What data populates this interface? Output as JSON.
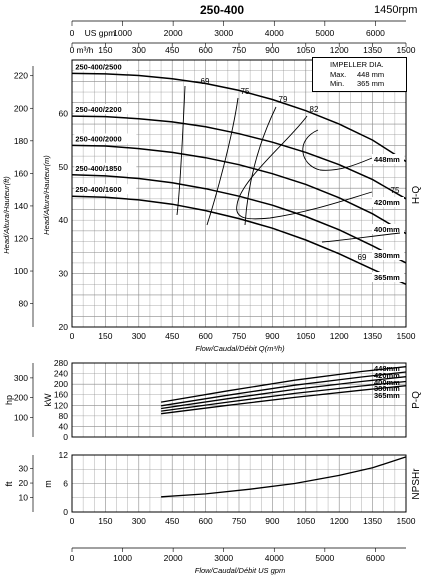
{
  "header": {
    "model": "250-400",
    "speed": "1450rpm"
  },
  "axes": {
    "us_gpm_label": "US gpm",
    "m3h_label": "m³/h",
    "flow_label_main": "Flow/Caudal/Débit Q(m³/h)",
    "flow_label_bottom": "Flow/Caudal/Débit  US gpm",
    "head_m_label": "Head/Altura/Hauteur(m)",
    "head_ft_label": "Head/Altura/Hauteur(ft)",
    "hq_label": "H-Q",
    "pq_label": "P-Q",
    "npsh_label": "NPSHr",
    "kw_label": "kW",
    "hp_label": "hp",
    "m_label": "m",
    "ft_label": "ft"
  },
  "impeller_box": {
    "title": "IMPELLER DIA.",
    "max_label": "Max.",
    "max_value": "448 mm",
    "min_label": "Min.",
    "min_value": "365 mm"
  },
  "chart_data": [
    {
      "type": "line",
      "title": "H-Q",
      "x_unit": "m³/h",
      "xlim": [
        0,
        1500
      ],
      "x_ticks": [
        0,
        150,
        300,
        450,
        600,
        750,
        900,
        1050,
        1200,
        1350,
        1500
      ],
      "ylim_m": [
        20,
        70
      ],
      "y_ticks_m": [
        20,
        30,
        40,
        50,
        60
      ],
      "y_ticks_ft": [
        80,
        100,
        120,
        140,
        160,
        180,
        200,
        220
      ],
      "us_gpm_ticks": [
        0,
        1000,
        2000,
        3000,
        4000,
        5000,
        6000
      ],
      "series": [
        {
          "name": "448mm",
          "label": "250-400/2500",
          "x": [
            0,
            150,
            300,
            450,
            600,
            750,
            900,
            1050,
            1200,
            1350,
            1500
          ],
          "y": [
            67.5,
            67.4,
            67.1,
            66.5,
            65.6,
            64.3,
            62.6,
            60.5,
            58.0,
            55.0,
            51.0
          ]
        },
        {
          "name": "420mm",
          "label": "250-400/2200",
          "x": [
            0,
            150,
            300,
            450,
            600,
            750,
            900,
            1050,
            1200,
            1350,
            1500
          ],
          "y": [
            59.5,
            59.4,
            59.0,
            58.4,
            57.5,
            56.2,
            54.6,
            52.7,
            50.4,
            47.6,
            44.0
          ]
        },
        {
          "name": "400mm",
          "label": "250-400/2000",
          "x": [
            0,
            150,
            300,
            450,
            600,
            750,
            900,
            1050,
            1200,
            1350,
            1500
          ],
          "y": [
            54.0,
            53.9,
            53.4,
            52.7,
            51.7,
            50.4,
            48.7,
            46.7,
            44.2,
            41.2,
            37.5
          ]
        },
        {
          "name": "380mm",
          "label": "250-400/1850",
          "x": [
            0,
            150,
            300,
            450,
            600,
            750,
            900,
            1050,
            1200,
            1350,
            1500
          ],
          "y": [
            48.5,
            48.3,
            47.8,
            47.0,
            45.9,
            44.5,
            42.8,
            40.7,
            38.2,
            35.2,
            32.0
          ]
        },
        {
          "name": "365mm",
          "label": "250-400/1600",
          "x": [
            0,
            150,
            300,
            450,
            600,
            750,
            900,
            1050,
            1200,
            1350,
            1500
          ],
          "y": [
            44.5,
            44.3,
            43.8,
            43.0,
            41.8,
            40.3,
            38.5,
            36.3,
            33.7,
            30.8,
            28.0
          ]
        }
      ],
      "efficiency_labels": [
        "69",
        "75",
        "79",
        "82",
        "75",
        "69"
      ],
      "curve_end_labels": [
        "448mm",
        "420mm",
        "400mm",
        "380mm",
        "365mm"
      ]
    },
    {
      "type": "line",
      "title": "P-Q",
      "x_unit": "m³/h",
      "xlim": [
        0,
        1500
      ],
      "ylim_kw": [
        0,
        280
      ],
      "y_ticks_kw": [
        0,
        40,
        80,
        120,
        160,
        200,
        240,
        280
      ],
      "y_ticks_hp": [
        100,
        200,
        300
      ],
      "series": [
        {
          "name": "448mm",
          "x": [
            400,
            700,
            1000,
            1300,
            1500
          ],
          "y": [
            132,
            175,
            215,
            248,
            266
          ]
        },
        {
          "name": "420mm",
          "x": [
            400,
            700,
            1000,
            1300,
            1500
          ],
          "y": [
            118,
            158,
            196,
            227,
            246
          ]
        },
        {
          "name": "400mm",
          "x": [
            400,
            700,
            1000,
            1300,
            1500
          ],
          "y": [
            108,
            145,
            180,
            210,
            228
          ]
        },
        {
          "name": "380mm",
          "x": [
            400,
            700,
            1000,
            1300,
            1500
          ],
          "y": [
            98,
            132,
            165,
            193,
            210
          ]
        },
        {
          "name": "365mm",
          "x": [
            400,
            700,
            1000,
            1300,
            1500
          ],
          "y": [
            88,
            120,
            150,
            177,
            194
          ]
        }
      ]
    },
    {
      "type": "line",
      "title": "NPSHr",
      "x_unit": "m³/h",
      "xlim": [
        0,
        1500
      ],
      "ylim_m": [
        0,
        12
      ],
      "y_ticks_m": [
        0,
        6,
        12
      ],
      "y_ticks_ft": [
        10,
        20,
        30
      ],
      "series": [
        {
          "name": "NPSHr",
          "x": [
            400,
            600,
            800,
            1000,
            1200,
            1350,
            1500
          ],
          "y": [
            3.2,
            3.8,
            4.8,
            6.0,
            7.7,
            9.3,
            11.6
          ]
        }
      ]
    }
  ]
}
